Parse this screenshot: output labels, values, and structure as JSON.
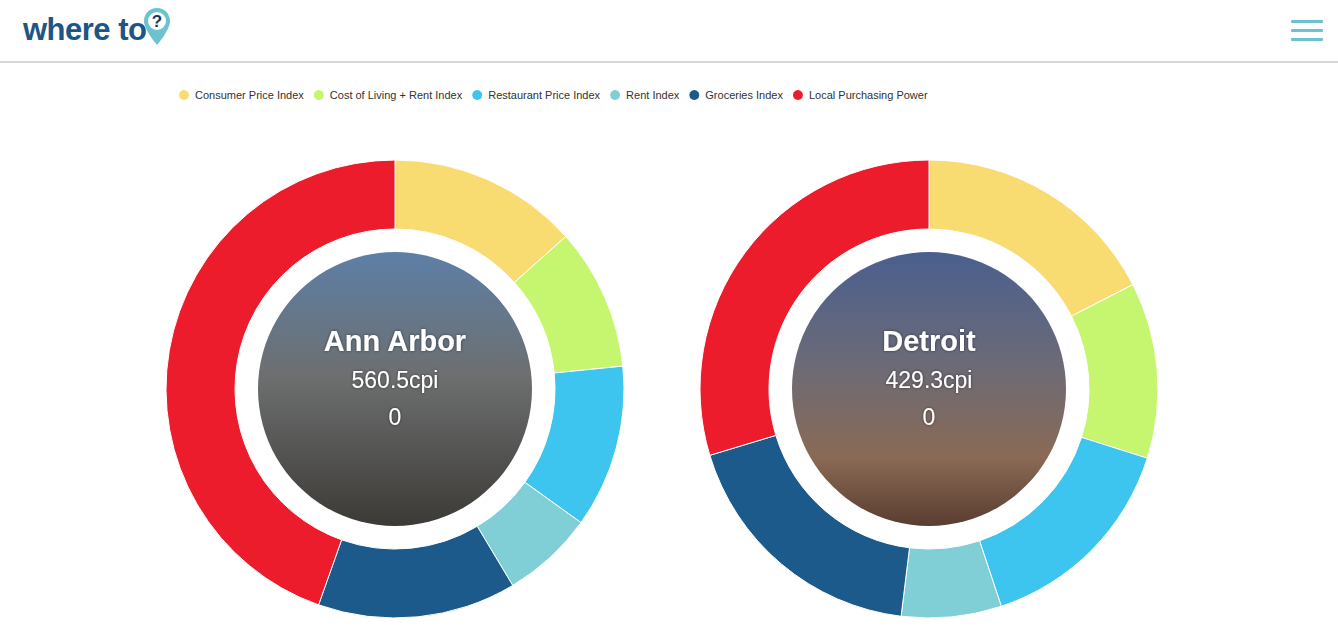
{
  "header": {
    "logo": "where to",
    "logo_mark": "?"
  },
  "chart_data": [
    {
      "type": "pie",
      "title": "Ann Arbor",
      "subtitle": "560.5cpi",
      "annotation": "0",
      "categories": [
        "Consumer Price Index",
        "Cost of Living + Rent Index",
        "Restaurant Price Index",
        "Rent Index",
        "Groceries Index",
        "Local Purchasing Power"
      ],
      "values": [
        75.1,
        56.1,
        64.5,
        36.4,
        78.5,
        249.9
      ],
      "colors": [
        "#f8dc72",
        "#c6f66f",
        "#3ec5ef",
        "#80cfd7",
        "#1b5a8b",
        "#ed1c2c"
      ],
      "legend": "top"
    },
    {
      "type": "pie",
      "title": "Detroit",
      "subtitle": "429.3cpi",
      "annotation": "0",
      "categories": [
        "Consumer Price Index",
        "Cost of Living + Rent Index",
        "Restaurant Price Index",
        "Rent Index",
        "Groceries Index",
        "Local Purchasing Power"
      ],
      "values": [
        75.0,
        53.3,
        64.4,
        30.3,
        78.9,
        127.4
      ],
      "colors": [
        "#f8dc72",
        "#c6f66f",
        "#3ec5ef",
        "#80cfd7",
        "#1b5a8b",
        "#ed1c2c"
      ],
      "legend": "top"
    }
  ]
}
